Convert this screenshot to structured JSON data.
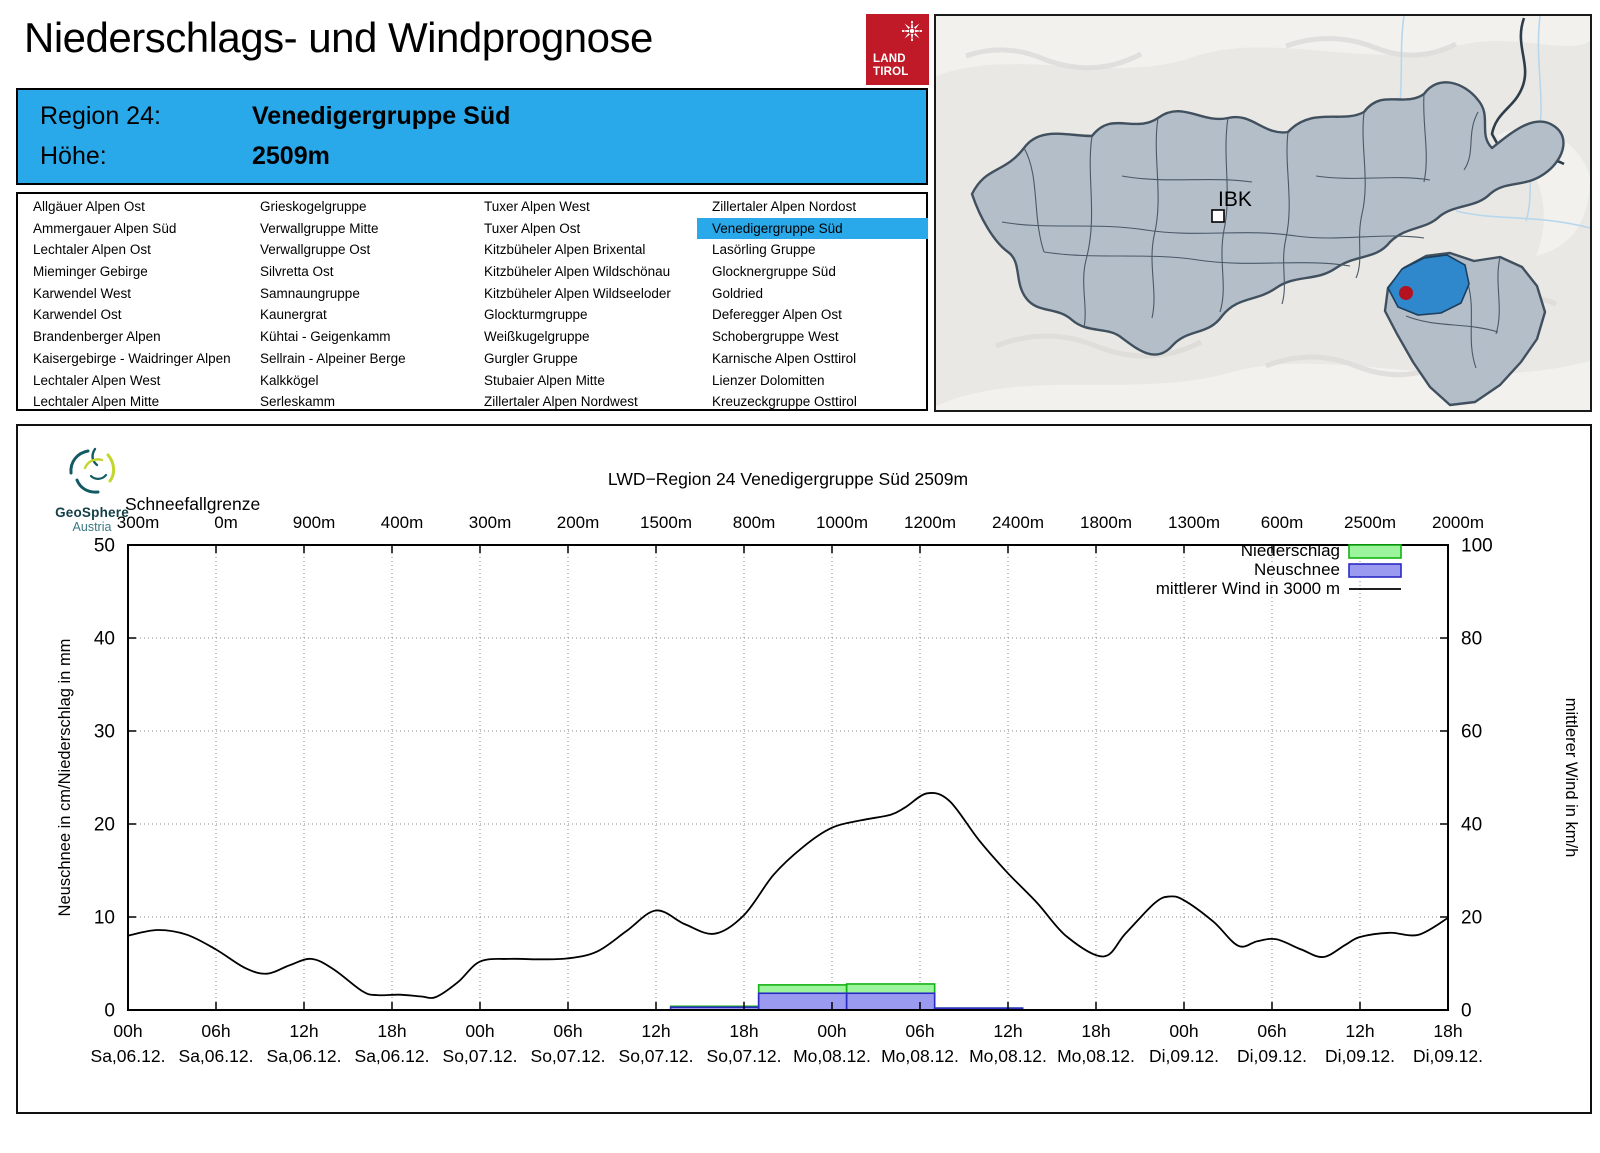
{
  "header": {
    "title": "Niederschlags- und Windprognose",
    "logo": {
      "line1": "LAND",
      "line2": "TIROL"
    }
  },
  "region_info": {
    "region_label": "Region 24:",
    "region_value": "Venedigergruppe Süd",
    "altitude_label": "Höhe:",
    "altitude_value": "2509m"
  },
  "region_list": {
    "selected": "Venedigergruppe Süd",
    "columns": [
      [
        "Allgäuer Alpen Ost",
        "Ammergauer Alpen Süd",
        "Lechtaler Alpen Ost",
        "Mieminger Gebirge",
        "Karwendel West",
        "Karwendel Ost",
        "Brandenberger Alpen",
        "Kaisergebirge - Waidringer Alpen",
        "Lechtaler Alpen West",
        "Lechtaler Alpen Mitte"
      ],
      [
        "Grieskogelgruppe",
        "Verwallgruppe Mitte",
        "Verwallgruppe Ost",
        "Silvretta Ost",
        "Samnaungruppe",
        "Kaunergrat",
        "Kühtai - Geigenkamm",
        "Sellrain - Alpeiner Berge",
        "Kalkkögel",
        "Serleskamm"
      ],
      [
        "Tuxer Alpen West",
        "Tuxer Alpen Ost",
        "Kitzbüheler Alpen Brixental",
        "Kitzbüheler Alpen Wildschönau",
        "Kitzbüheler Alpen Wildseeloder",
        "Glockturmgruppe",
        "Weißkugelgruppe",
        "Gurgler Gruppe",
        "Stubaier Alpen Mitte",
        "Zillertaler Alpen Nordwest"
      ],
      [
        "Zillertaler Alpen Nordost",
        "Venedigergruppe Süd",
        "Lasörling Gruppe",
        "Glocknergruppe Süd",
        "Goldried",
        "Deferegger Alpen Ost",
        "Schobergruppe West",
        "Karnische Alpen Osttirol",
        "Lienzer Dolomitten",
        "Kreuzeckgruppe Osttirol"
      ]
    ]
  },
  "map": {
    "city_label": "IBK"
  },
  "branding": {
    "geosphere_name": "GeoSphere",
    "geosphere_sub": "Austria"
  },
  "colors": {
    "accent_blue": "#29a9ea",
    "tirol_red": "#c01a28",
    "precip_fill": "#9cf49c",
    "precip_stroke": "#14b214",
    "snow_fill": "#9a9af0",
    "snow_stroke": "#2b2bc4",
    "wind_line": "#000000",
    "map_region_fill": "#b3bec9",
    "map_highlight": "#2f88cb",
    "map_dot_red": "#b5121f"
  },
  "chart_data": {
    "type": "composite",
    "subtypes": [
      "bar",
      "line"
    ],
    "title": "LWD−Region 24 Venedigergruppe Süd 2509m",
    "snowline": {
      "label": "Schneefallgrenze",
      "values": [
        "300m",
        "0m",
        "900m",
        "400m",
        "300m",
        "200m",
        "1500m",
        "800m",
        "1000m",
        "1200m",
        "2400m",
        "1800m",
        "1300m",
        "600m",
        "2500m",
        "2000m"
      ]
    },
    "x_ticks": [
      {
        "time": "00h",
        "date": "Sa,06.12."
      },
      {
        "time": "06h",
        "date": "Sa,06.12."
      },
      {
        "time": "12h",
        "date": "Sa,06.12."
      },
      {
        "time": "18h",
        "date": "Sa,06.12."
      },
      {
        "time": "00h",
        "date": "So,07.12."
      },
      {
        "time": "06h",
        "date": "So,07.12."
      },
      {
        "time": "12h",
        "date": "So,07.12."
      },
      {
        "time": "18h",
        "date": "So,07.12."
      },
      {
        "time": "00h",
        "date": "Mo,08.12."
      },
      {
        "time": "06h",
        "date": "Mo,08.12."
      },
      {
        "time": "12h",
        "date": "Mo,08.12."
      },
      {
        "time": "18h",
        "date": "Mo,08.12."
      },
      {
        "time": "00h",
        "date": "Di,09.12."
      },
      {
        "time": "06h",
        "date": "Di,09.12."
      },
      {
        "time": "12h",
        "date": "Di,09.12."
      },
      {
        "time": "18h",
        "date": "Di,09.12."
      }
    ],
    "x_total_hours": 90,
    "ylabel_left": "Neuschnee in cm/Niederschlag in mm",
    "ylabel_right": "mittlerer Wind in km/h",
    "ylim_left": [
      0,
      50
    ],
    "ylim_right": [
      0,
      100
    ],
    "yticks_left": [
      0,
      10,
      20,
      30,
      40,
      50
    ],
    "yticks_right": [
      0,
      20,
      40,
      60,
      80,
      100
    ],
    "grid": {
      "h_lines": [
        10,
        20,
        30,
        40
      ],
      "style": "dotted",
      "vertical_every_tick": true
    },
    "legend": {
      "position": "top-right",
      "entries": [
        {
          "label": "Niederschlag",
          "swatch": "box-green"
        },
        {
          "label": "Neuschnee",
          "swatch": "box-blue"
        },
        {
          "label": "mittlerer Wind in 3000 m",
          "swatch": "line-black"
        }
      ]
    },
    "bars_6h": [
      {
        "start_h": 37,
        "end_h": 43,
        "niederschlag_mm": 0.4,
        "neuschnee_cm": 0.3
      },
      {
        "start_h": 43,
        "end_h": 49,
        "niederschlag_mm": 2.7,
        "neuschnee_cm": 1.8
      },
      {
        "start_h": 49,
        "end_h": 55,
        "niederschlag_mm": 2.8,
        "neuschnee_cm": 1.8
      },
      {
        "start_h": 55,
        "end_h": 61,
        "niederschlag_mm": 0.2,
        "neuschnee_cm": 0.2
      }
    ],
    "wind_series": {
      "name": "mittlerer Wind in 3000 m",
      "axis": "right",
      "x_hours": [
        0,
        2,
        4,
        6,
        8,
        9.5,
        11,
        12.5,
        14,
        16,
        17,
        18.5,
        20,
        21,
        22.5,
        24,
        26,
        28,
        30,
        32,
        34,
        36,
        38,
        40,
        42,
        44,
        46,
        48,
        50,
        52,
        53,
        54.5,
        56,
        58,
        60,
        62,
        64,
        66.5,
        68,
        70,
        71,
        72,
        74,
        75.7,
        77,
        78.3,
        80,
        81.5,
        83,
        84,
        86,
        88,
        90
      ],
      "values_kmh": [
        16,
        17.2,
        16.2,
        13,
        9,
        7.8,
        9.6,
        11,
        8.8,
        4,
        3.2,
        3.3,
        2.9,
        2.8,
        6,
        10.4,
        11,
        10.9,
        11.1,
        12.6,
        17,
        21.4,
        18.4,
        16.4,
        20.4,
        29,
        35,
        39.2,
        40.8,
        42,
        43.6,
        46.6,
        45,
        36.6,
        29.4,
        23,
        15.8,
        11.5,
        16.4,
        23,
        24.4,
        23.6,
        19,
        13.8,
        14.8,
        15.2,
        13,
        11.4,
        14,
        15.7,
        16.6,
        16.2,
        19.8
      ]
    }
  }
}
